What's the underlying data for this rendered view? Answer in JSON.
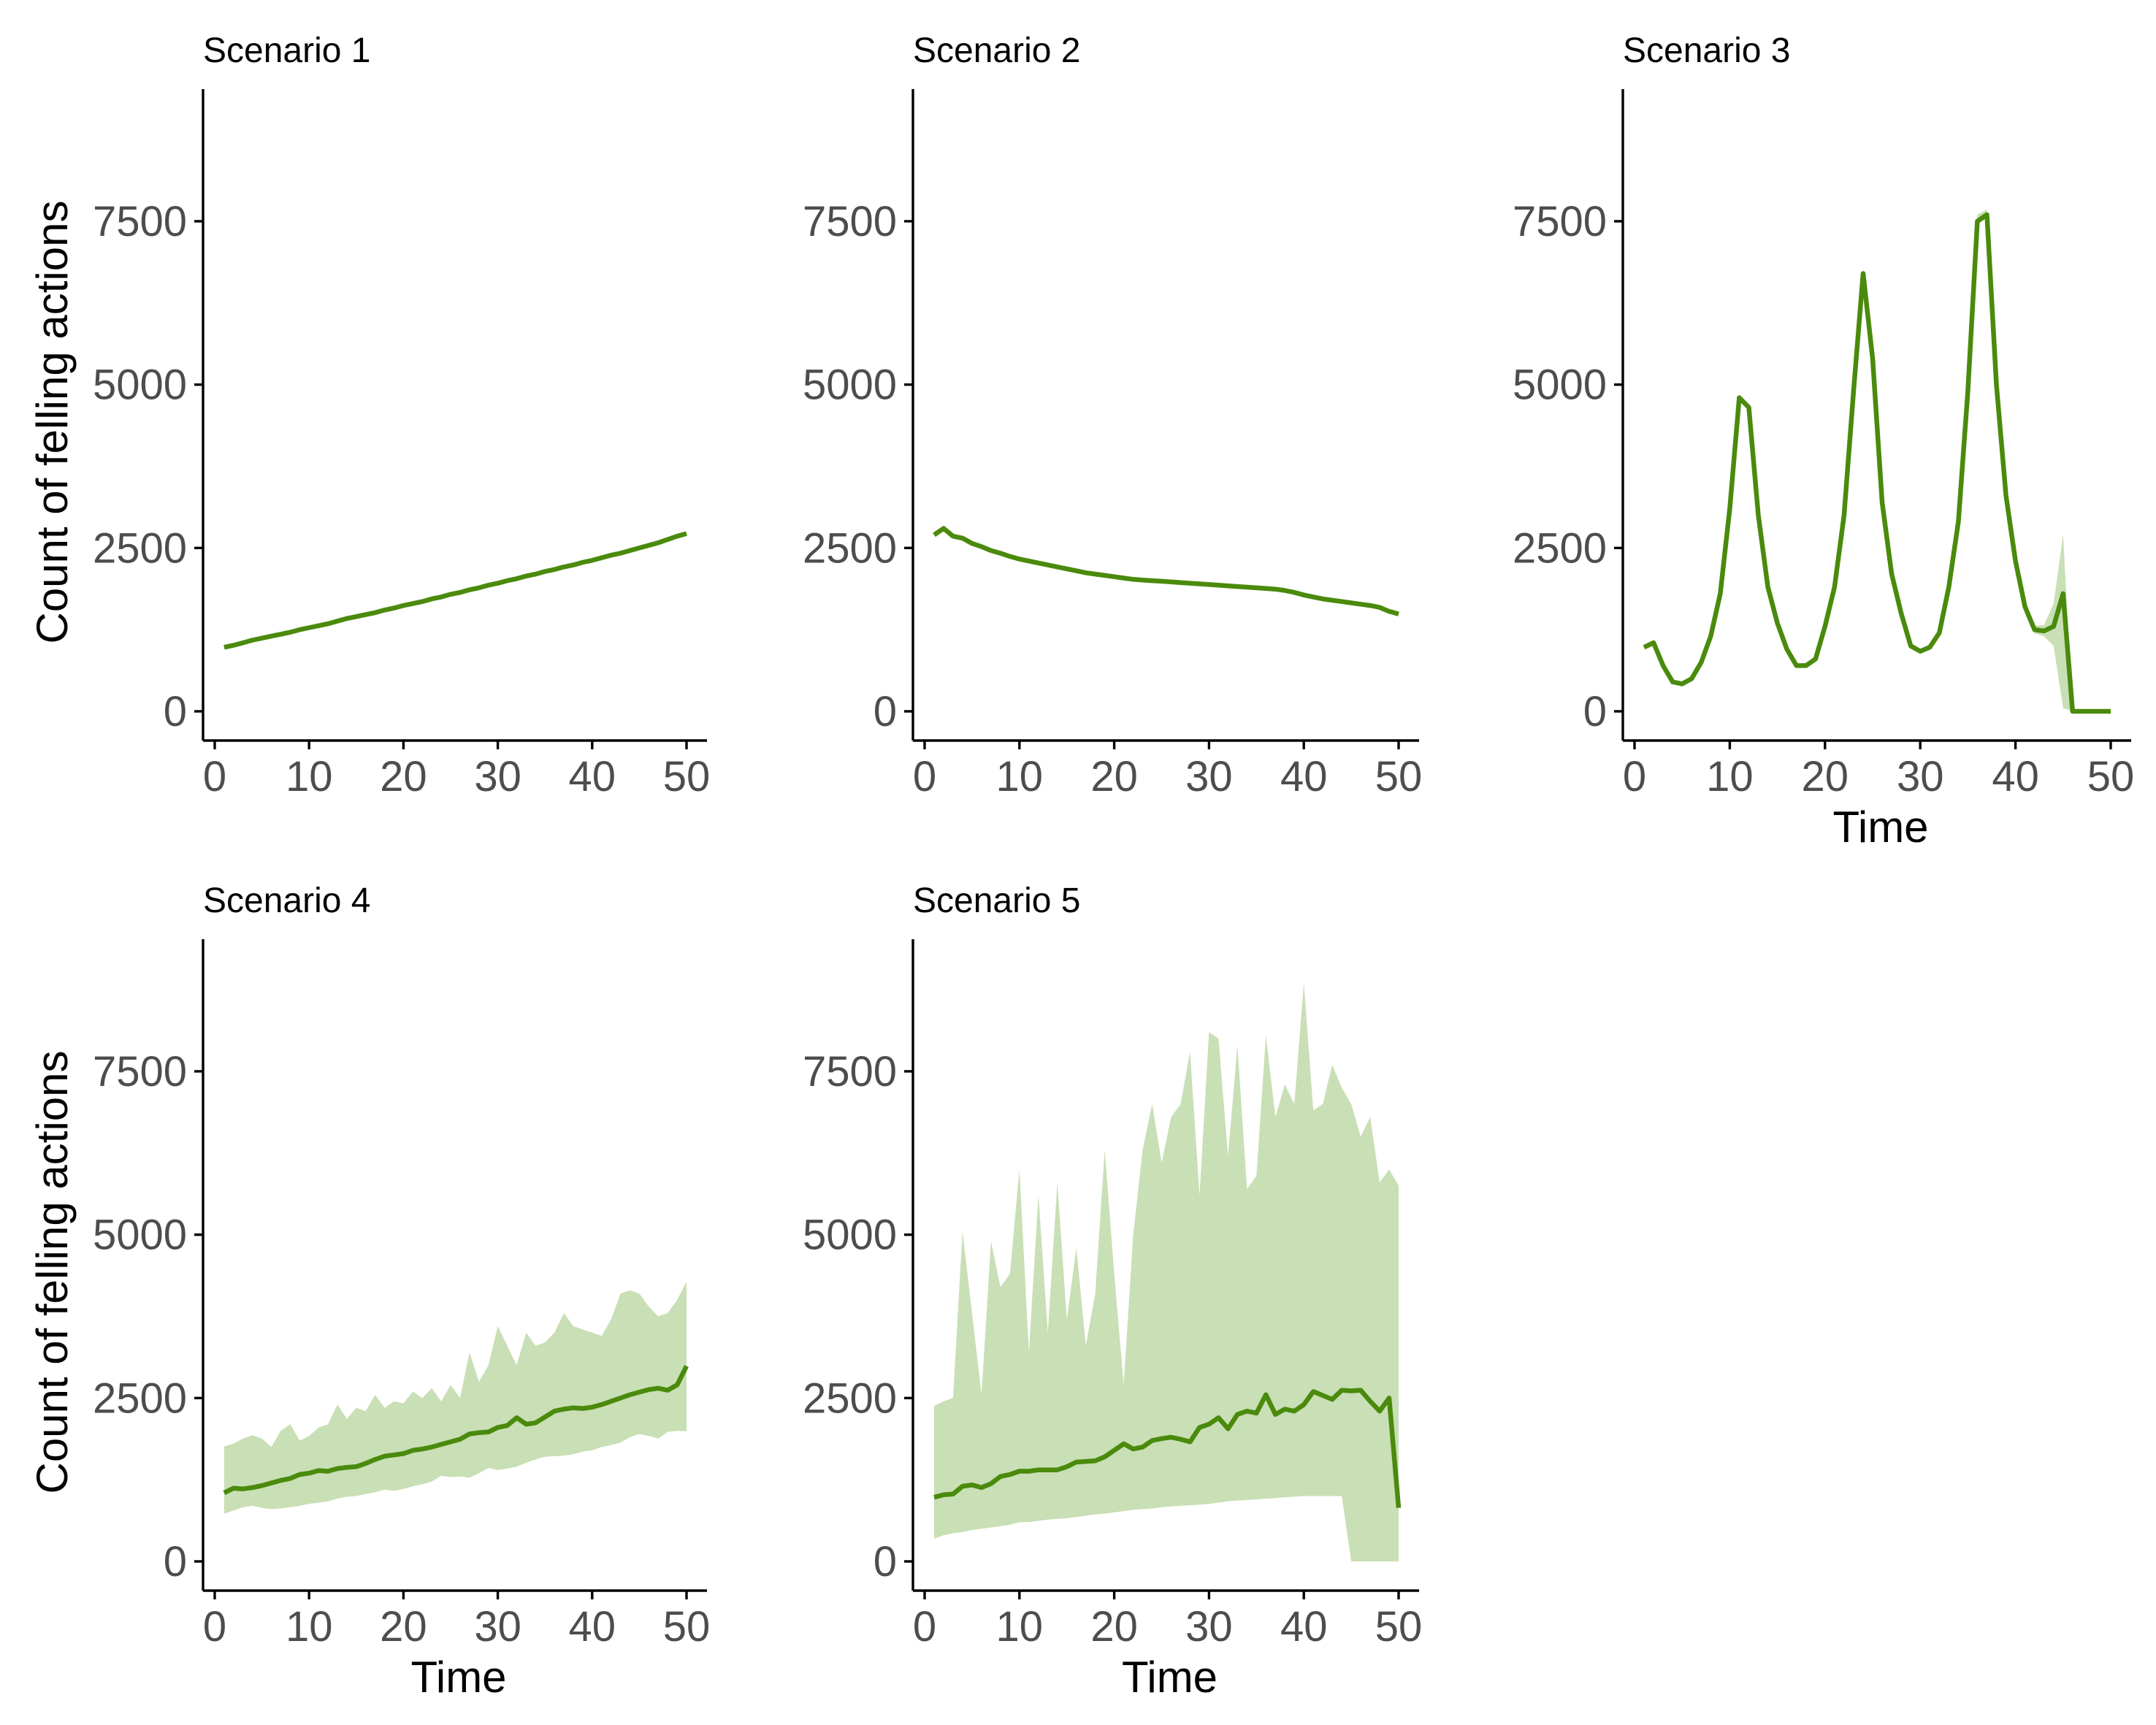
{
  "figure": {
    "line_color": "#4a8a0c",
    "ribbon_color": "#c9dfb5"
  },
  "chart_data": [
    {
      "type": "line",
      "title": "Scenario 1",
      "xlabel": "",
      "ylabel": "Count of felling actions",
      "xlim": [
        0,
        50
      ],
      "ylim": [
        0,
        9500
      ],
      "xticks": [
        0,
        10,
        20,
        30,
        40,
        50
      ],
      "yticks": [
        0,
        2500,
        5000,
        7500
      ],
      "grid": false,
      "x": [
        1,
        2,
        3,
        4,
        5,
        6,
        7,
        8,
        9,
        10,
        11,
        12,
        13,
        14,
        15,
        16,
        17,
        18,
        19,
        20,
        21,
        22,
        23,
        24,
        25,
        26,
        27,
        28,
        29,
        30,
        31,
        32,
        33,
        34,
        35,
        36,
        37,
        38,
        39,
        40,
        41,
        42,
        43,
        44,
        45,
        46,
        47,
        48,
        49,
        50
      ],
      "y": [
        980,
        1010,
        1050,
        1090,
        1120,
        1150,
        1180,
        1210,
        1250,
        1280,
        1310,
        1340,
        1380,
        1420,
        1450,
        1480,
        1510,
        1550,
        1580,
        1620,
        1650,
        1680,
        1720,
        1750,
        1790,
        1820,
        1860,
        1890,
        1930,
        1960,
        2000,
        2030,
        2070,
        2100,
        2140,
        2170,
        2210,
        2240,
        2280,
        2310,
        2350,
        2390,
        2420,
        2460,
        2500,
        2540,
        2580,
        2630,
        2680,
        2720
      ],
      "lower": [],
      "upper": []
    },
    {
      "type": "line",
      "title": "Scenario 2",
      "xlabel": "",
      "ylabel": "",
      "xlim": [
        0,
        50
      ],
      "ylim": [
        0,
        9500
      ],
      "xticks": [
        0,
        10,
        20,
        30,
        40,
        50
      ],
      "yticks": [
        0,
        2500,
        5000,
        7500
      ],
      "grid": false,
      "x": [
        1,
        2,
        3,
        4,
        5,
        6,
        7,
        8,
        9,
        10,
        11,
        12,
        13,
        14,
        15,
        16,
        17,
        18,
        19,
        20,
        21,
        22,
        23,
        24,
        25,
        26,
        27,
        28,
        29,
        30,
        31,
        32,
        33,
        34,
        35,
        36,
        37,
        38,
        39,
        40,
        41,
        42,
        43,
        44,
        45,
        46,
        47,
        48,
        49,
        50
      ],
      "y": [
        2700,
        2800,
        2680,
        2650,
        2570,
        2520,
        2460,
        2420,
        2370,
        2330,
        2300,
        2270,
        2240,
        2210,
        2180,
        2150,
        2120,
        2100,
        2080,
        2060,
        2040,
        2020,
        2010,
        2000,
        1990,
        1980,
        1970,
        1960,
        1950,
        1940,
        1930,
        1920,
        1910,
        1900,
        1890,
        1880,
        1870,
        1850,
        1820,
        1780,
        1750,
        1720,
        1700,
        1680,
        1660,
        1640,
        1620,
        1590,
        1530,
        1490
      ],
      "lower": [],
      "upper": []
    },
    {
      "type": "line",
      "title": "Scenario 3",
      "xlabel": "Time",
      "ylabel": "",
      "xlim": [
        0,
        50
      ],
      "ylim": [
        0,
        9500
      ],
      "xticks": [
        0,
        10,
        20,
        30,
        40,
        50
      ],
      "yticks": [
        0,
        2500,
        5000,
        7500
      ],
      "grid": false,
      "x": [
        1,
        2,
        3,
        4,
        5,
        6,
        7,
        8,
        9,
        10,
        11,
        12,
        13,
        14,
        15,
        16,
        17,
        18,
        19,
        20,
        21,
        22,
        23,
        24,
        25,
        26,
        27,
        28,
        29,
        30,
        31,
        32,
        33,
        34,
        35,
        36,
        37,
        38,
        39,
        40,
        41,
        42,
        43,
        44,
        45,
        46,
        47,
        48,
        49,
        50
      ],
      "y": [
        980,
        1050,
        700,
        450,
        420,
        500,
        750,
        1150,
        1800,
        3100,
        4800,
        4650,
        3000,
        1900,
        1350,
        950,
        700,
        700,
        800,
        1300,
        1900,
        3000,
        4900,
        6700,
        5400,
        3200,
        2100,
        1500,
        1000,
        920,
        980,
        1200,
        1900,
        2900,
        4900,
        7500,
        7600,
        5000,
        3300,
        2300,
        1600,
        1250,
        1230,
        1300,
        1800,
        0,
        0,
        0,
        0,
        0
      ],
      "lower": [
        980,
        1050,
        700,
        450,
        420,
        500,
        750,
        1150,
        1800,
        3100,
        4780,
        4620,
        2980,
        1880,
        1330,
        930,
        690,
        690,
        790,
        1280,
        1880,
        2980,
        4870,
        6650,
        5350,
        3170,
        2080,
        1480,
        990,
        910,
        970,
        1190,
        1880,
        2870,
        4850,
        7450,
        7550,
        4950,
        3250,
        2250,
        1540,
        1190,
        1150,
        1000,
        50,
        0,
        0,
        0,
        0,
        0
      ],
      "upper": [
        980,
        1050,
        700,
        450,
        420,
        500,
        750,
        1150,
        1800,
        3100,
        4820,
        4680,
        3020,
        1920,
        1370,
        970,
        710,
        710,
        810,
        1320,
        1920,
        3020,
        4930,
        6750,
        5450,
        3230,
        2120,
        1520,
        1010,
        930,
        990,
        1210,
        1920,
        2930,
        4950,
        7600,
        7680,
        5050,
        3350,
        2350,
        1660,
        1310,
        1320,
        1650,
        2700,
        0,
        0,
        0,
        0,
        0
      ]
    },
    {
      "type": "line",
      "title": "Scenario 4",
      "xlabel": "Time",
      "ylabel": "Count of felling actions",
      "xlim": [
        0,
        50
      ],
      "ylim": [
        0,
        9500
      ],
      "xticks": [
        0,
        10,
        20,
        30,
        40,
        50
      ],
      "yticks": [
        0,
        2500,
        5000,
        7500
      ],
      "grid": false,
      "x": [
        1,
        2,
        3,
        4,
        5,
        6,
        7,
        8,
        9,
        10,
        11,
        12,
        13,
        14,
        15,
        16,
        17,
        18,
        19,
        20,
        21,
        22,
        23,
        24,
        25,
        26,
        27,
        28,
        29,
        30,
        31,
        32,
        33,
        34,
        35,
        36,
        37,
        38,
        39,
        40,
        41,
        42,
        43,
        44,
        45,
        46,
        47,
        48,
        49,
        50
      ],
      "y": [
        1050,
        1120,
        1110,
        1130,
        1160,
        1200,
        1240,
        1270,
        1330,
        1350,
        1390,
        1380,
        1420,
        1440,
        1450,
        1500,
        1560,
        1610,
        1630,
        1650,
        1700,
        1720,
        1750,
        1790,
        1830,
        1870,
        1950,
        1970,
        1980,
        2050,
        2080,
        2200,
        2100,
        2120,
        2210,
        2300,
        2330,
        2350,
        2340,
        2360,
        2400,
        2450,
        2500,
        2550,
        2590,
        2630,
        2650,
        2620,
        2700,
        2990
      ],
      "lower": [
        730,
        780,
        830,
        850,
        820,
        800,
        810,
        830,
        850,
        880,
        900,
        920,
        960,
        990,
        1000,
        1030,
        1060,
        1100,
        1080,
        1110,
        1150,
        1180,
        1220,
        1310,
        1290,
        1300,
        1280,
        1350,
        1430,
        1400,
        1420,
        1450,
        1510,
        1560,
        1600,
        1610,
        1620,
        1640,
        1680,
        1700,
        1750,
        1780,
        1820,
        1900,
        1950,
        1920,
        1880,
        1980,
        2000,
        1990
      ],
      "upper": [
        1760,
        1800,
        1880,
        1930,
        1880,
        1750,
        2000,
        2100,
        1850,
        1920,
        2050,
        2100,
        2400,
        2180,
        2350,
        2300,
        2550,
        2350,
        2450,
        2420,
        2600,
        2500,
        2650,
        2450,
        2700,
        2500,
        3200,
        2750,
        3000,
        3600,
        3300,
        3000,
        3500,
        3300,
        3350,
        3500,
        3800,
        3600,
        3550,
        3500,
        3450,
        3700,
        4100,
        4150,
        4100,
        3900,
        3750,
        3800,
        4000,
        4280
      ]
    },
    {
      "type": "line",
      "title": "Scenario 5",
      "xlabel": "Time",
      "ylabel": "",
      "xlim": [
        0,
        50
      ],
      "ylim": [
        0,
        9500
      ],
      "xticks": [
        0,
        10,
        20,
        30,
        40,
        50
      ],
      "yticks": [
        0,
        2500,
        5000,
        7500
      ],
      "grid": false,
      "x": [
        1,
        2,
        3,
        4,
        5,
        6,
        7,
        8,
        9,
        10,
        11,
        12,
        13,
        14,
        15,
        16,
        17,
        18,
        19,
        20,
        21,
        22,
        23,
        24,
        25,
        26,
        27,
        28,
        29,
        30,
        31,
        32,
        33,
        34,
        35,
        36,
        37,
        38,
        39,
        40,
        41,
        42,
        43,
        44,
        45,
        46,
        47,
        48,
        49,
        50
      ],
      "y": [
        980,
        1020,
        1030,
        1150,
        1170,
        1130,
        1190,
        1300,
        1330,
        1380,
        1380,
        1400,
        1400,
        1400,
        1450,
        1520,
        1530,
        1540,
        1600,
        1700,
        1800,
        1720,
        1750,
        1850,
        1880,
        1900,
        1870,
        1830,
        2050,
        2100,
        2200,
        2030,
        2250,
        2300,
        2270,
        2550,
        2250,
        2330,
        2300,
        2400,
        2600,
        2540,
        2480,
        2620,
        2610,
        2620,
        2450,
        2300,
        2500,
        820
      ],
      "lower": [
        350,
        400,
        430,
        450,
        480,
        500,
        520,
        540,
        560,
        600,
        600,
        620,
        640,
        650,
        660,
        680,
        700,
        720,
        730,
        750,
        770,
        790,
        800,
        810,
        830,
        840,
        850,
        860,
        870,
        880,
        900,
        920,
        930,
        940,
        950,
        960,
        970,
        980,
        990,
        1000,
        1000,
        1000,
        1000,
        1000,
        0,
        0,
        0,
        0,
        0,
        0
      ],
      "upper": [
        2380,
        2450,
        2500,
        5050,
        3800,
        2550,
        4900,
        4200,
        4400,
        6000,
        3200,
        5600,
        3500,
        5800,
        3700,
        4800,
        3300,
        4100,
        6300,
        4400,
        2700,
        5000,
        6300,
        7000,
        6100,
        6800,
        7000,
        7800,
        5600,
        8100,
        8000,
        6200,
        7900,
        5700,
        5900,
        8050,
        6800,
        7300,
        7000,
        8850,
        6900,
        7000,
        7600,
        7250,
        7000,
        6500,
        6800,
        5800,
        6000,
        5750
      ]
    }
  ]
}
